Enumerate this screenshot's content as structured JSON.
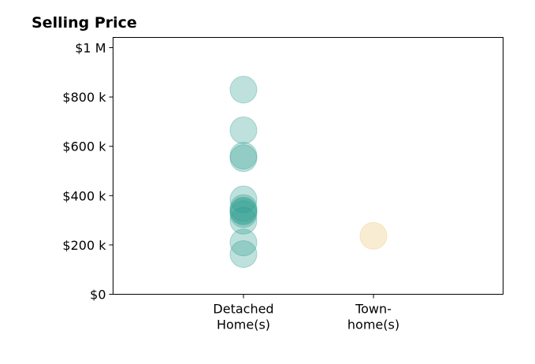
{
  "chart_data": {
    "type": "scatter",
    "title": "Selling Price",
    "xlabel": "",
    "ylabel": "",
    "categories": [
      [
        "Detached",
        "Home(s)"
      ],
      [
        "Town-",
        "home(s)"
      ]
    ],
    "ylim": [
      0,
      1000000
    ],
    "yticks": [
      {
        "value": 0,
        "label": "$0"
      },
      {
        "value": 200000,
        "label": "$200 k"
      },
      {
        "value": 400000,
        "label": "$400 k"
      },
      {
        "value": 600000,
        "label": "$600 k"
      },
      {
        "value": 800000,
        "label": "$800 k"
      },
      {
        "value": 1000000,
        "label": "$1 M"
      }
    ],
    "grid": false,
    "series": [
      {
        "category_index": 0,
        "color": "#2a9d8f",
        "values": [
          830000,
          665000,
          562000,
          552000,
          385000,
          350000,
          340000,
          335000,
          325000,
          298000,
          210000,
          163000
        ]
      },
      {
        "category_index": 1,
        "color": "#e9c46a",
        "values": [
          237000
        ]
      }
    ]
  }
}
